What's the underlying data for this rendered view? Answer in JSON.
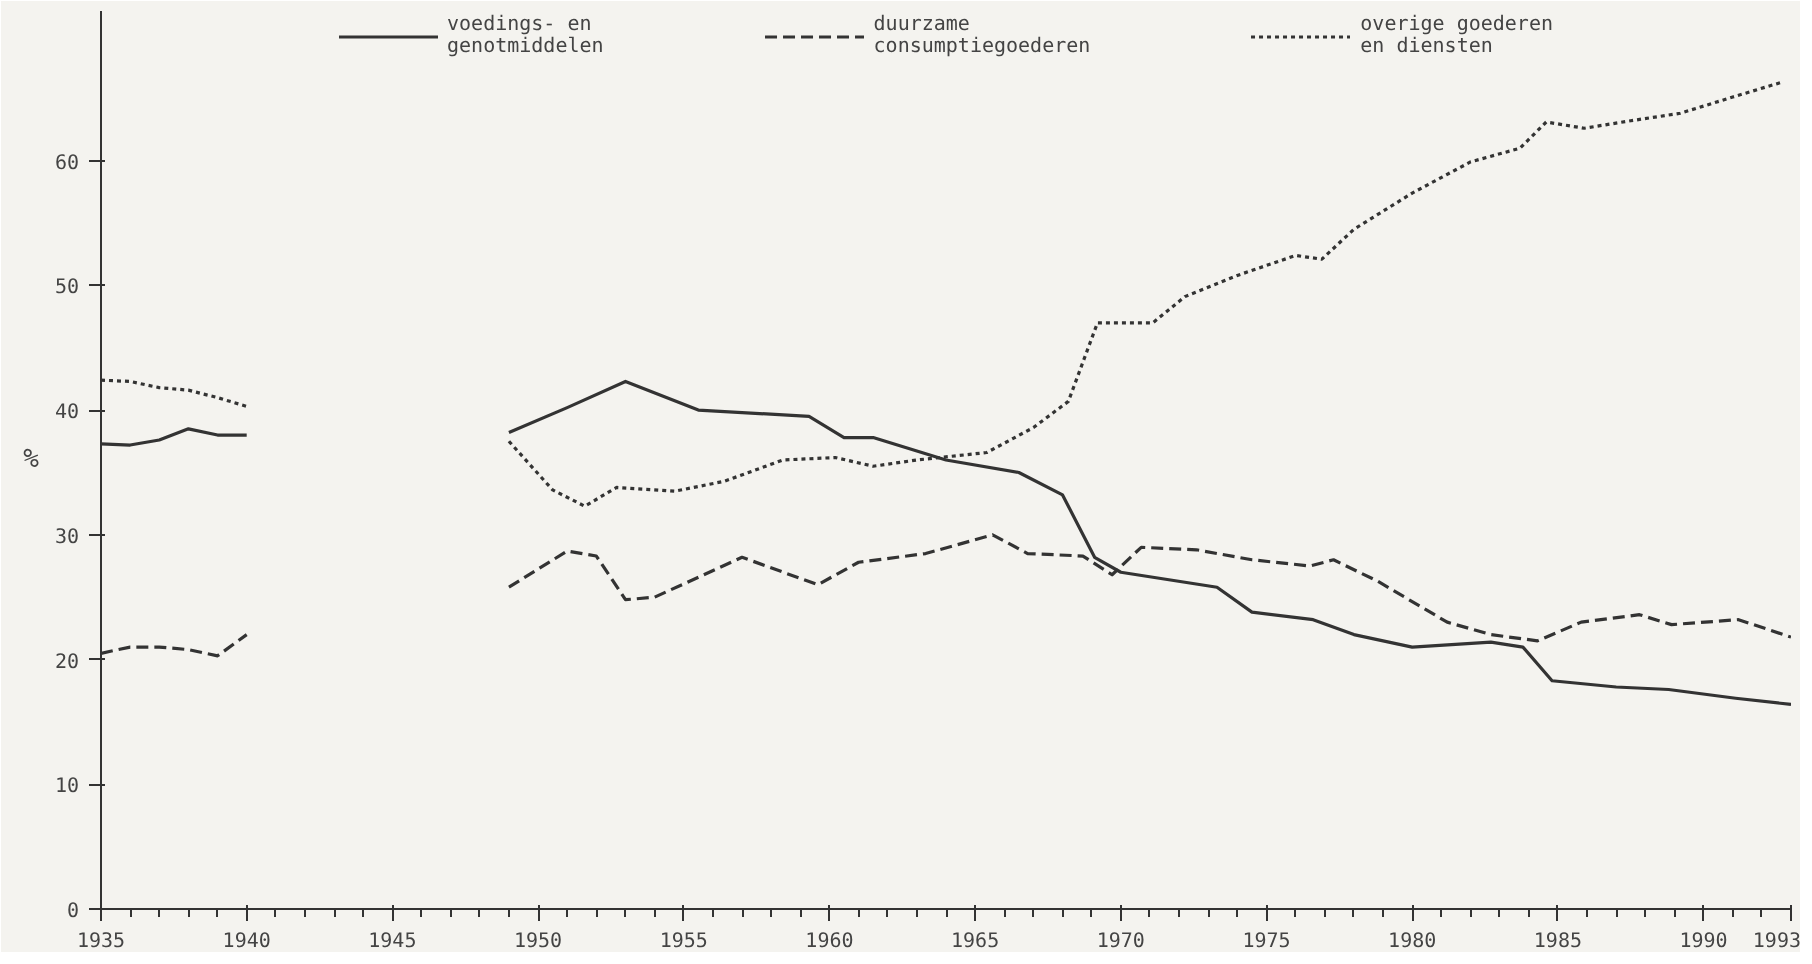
{
  "chart_data": {
    "type": "line",
    "ylabel": "%",
    "xlim": [
      1935,
      1993
    ],
    "ylim": [
      0,
      72
    ],
    "xticks": [
      1935,
      1940,
      1945,
      1950,
      1955,
      1960,
      1965,
      1970,
      1975,
      1980,
      1985,
      1990,
      1993
    ],
    "yticks": [
      0,
      10,
      20,
      30,
      40,
      50,
      60
    ],
    "grid": false,
    "legend": "top",
    "series": [
      {
        "name": "voedings- en\ngenotmiddelen",
        "color": "#333333",
        "line_style": "solid",
        "x": [
          1935,
          1936,
          1937,
          1938,
          1939,
          1940,
          1945,
          1949,
          1951,
          1953,
          1955.5,
          1959.3,
          1960.5,
          1961.5,
          1964,
          1966.5,
          1968,
          1969.1,
          1970,
          1973.3,
          1974.5,
          1976.6,
          1978,
          1980,
          1982.7,
          1983.8,
          1984.8,
          1987,
          1988.8,
          1991.1,
          1993
        ],
        "values": [
          37.3,
          37.2,
          37.6,
          38.5,
          38,
          38,
          null,
          38.2,
          40.2,
          42.3,
          40,
          39.5,
          37.8,
          37.8,
          36,
          35,
          33.2,
          28.2,
          27,
          25.8,
          23.8,
          23.2,
          22,
          21,
          21.4,
          21,
          18.3,
          17.8,
          17.6,
          16.9,
          16.4
        ]
      },
      {
        "name": "duurzame\nconsumptiegoederen",
        "color": "#333333",
        "line_style": "dashed",
        "x": [
          1935,
          1936,
          1937,
          1938,
          1939,
          1940,
          1945,
          1949,
          1951,
          1952,
          1953,
          1954,
          1957,
          1959.6,
          1961,
          1963.3,
          1965.6,
          1966.8,
          1968.7,
          1969.7,
          1970.7,
          1972.6,
          1974.5,
          1976.5,
          1977.3,
          1978.8,
          1981.2,
          1982.7,
          1984.3,
          1985.8,
          1987.8,
          1988.9,
          1991.2,
          1993
        ],
        "values": [
          20.5,
          21,
          21,
          20.8,
          20.3,
          22,
          null,
          25.8,
          28.7,
          28.3,
          24.8,
          25,
          28.2,
          26,
          27.8,
          28.5,
          30,
          28.5,
          28.3,
          26.8,
          29,
          28.8,
          28,
          27.5,
          28,
          26.3,
          23,
          22,
          21.5,
          23,
          23.6,
          22.8,
          23.2,
          21.8
        ]
      },
      {
        "name": "overige goederen\nen diensten",
        "color": "#333333",
        "line_style": "dotted",
        "x": [
          1935,
          1936,
          1937,
          1938,
          1939,
          1940,
          1945,
          1949,
          1950.5,
          1951.6,
          1952.7,
          1954.7,
          1956.4,
          1958.4,
          1960.2,
          1961.5,
          1963,
          1965.4,
          1967,
          1968.2,
          1969.2,
          1971.1,
          1972.2,
          1974,
          1976,
          1976.9,
          1978,
          1980,
          1982,
          1983.7,
          1984.6,
          1985.9,
          1987.5,
          1989.2,
          1991,
          1992.7
        ],
        "values": [
          42.4,
          42.3,
          41.8,
          41.6,
          41,
          40.3,
          null,
          37.5,
          33.6,
          32.3,
          33.8,
          33.5,
          34.3,
          36,
          36.2,
          35.5,
          36,
          36.6,
          38.6,
          40.7,
          47,
          47,
          49.1,
          50.8,
          52.4,
          52.1,
          54.5,
          57.4,
          59.9,
          61,
          63.1,
          62.6,
          63.2,
          63.8,
          65.1,
          66.3
        ]
      }
    ]
  }
}
